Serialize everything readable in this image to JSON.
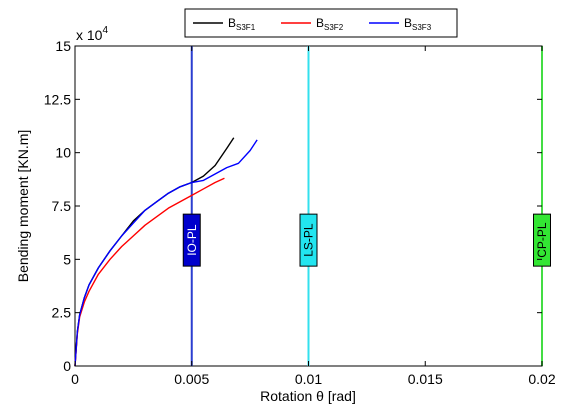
{
  "chart_data": {
    "type": "line",
    "xlabel": "Rotation  θ [rad]",
    "ylabel": "Bending moment  [KN.m]",
    "y_multiplier": "x 10",
    "y_multiplier_exp": "4",
    "xlim": [
      0,
      0.02
    ],
    "ylim": [
      0,
      15
    ],
    "x_ticks": [
      0,
      0.005,
      0.01,
      0.015,
      0.02
    ],
    "x_tick_labels": [
      "0",
      "0.005",
      "0.01",
      "0.015",
      "0.02"
    ],
    "y_ticks": [
      0,
      2.5,
      5,
      7.5,
      10,
      12.5,
      15
    ],
    "y_tick_labels": [
      "0",
      "2.5",
      "5",
      "7.5",
      "10",
      "12.5",
      "15"
    ],
    "grid": false,
    "legend_placement": "top",
    "series": [
      {
        "name": "B",
        "subscript": "S3F1",
        "color": "#000000",
        "points": [
          [
            0,
            0
          ],
          [
            0.0001,
            1.6
          ],
          [
            0.0002,
            2.4
          ],
          [
            0.0004,
            3.2
          ],
          [
            0.0006,
            3.8
          ],
          [
            0.001,
            4.6
          ],
          [
            0.0015,
            5.4
          ],
          [
            0.002,
            6.1
          ],
          [
            0.0025,
            6.8
          ],
          [
            0.003,
            7.3
          ],
          [
            0.0035,
            7.7
          ],
          [
            0.004,
            8.1
          ],
          [
            0.0045,
            8.4
          ],
          [
            0.005,
            8.6
          ],
          [
            0.0055,
            8.9
          ],
          [
            0.006,
            9.4
          ],
          [
            0.0065,
            10.2
          ],
          [
            0.0068,
            10.7
          ]
        ]
      },
      {
        "name": "B",
        "subscript": "S3F2",
        "color": "#ff0000",
        "points": [
          [
            0,
            0
          ],
          [
            0.0001,
            1.5
          ],
          [
            0.0002,
            2.3
          ],
          [
            0.0004,
            3.0
          ],
          [
            0.0006,
            3.5
          ],
          [
            0.001,
            4.3
          ],
          [
            0.0015,
            5.0
          ],
          [
            0.002,
            5.6
          ],
          [
            0.0025,
            6.1
          ],
          [
            0.003,
            6.6
          ],
          [
            0.0035,
            7.0
          ],
          [
            0.004,
            7.4
          ],
          [
            0.0045,
            7.7
          ],
          [
            0.005,
            8.0
          ],
          [
            0.0055,
            8.3
          ],
          [
            0.006,
            8.6
          ],
          [
            0.0064,
            8.8
          ]
        ]
      },
      {
        "name": "B",
        "subscript": "S3F3",
        "color": "#0000ff",
        "points": [
          [
            0,
            0
          ],
          [
            0.0001,
            1.6
          ],
          [
            0.0002,
            2.4
          ],
          [
            0.0004,
            3.2
          ],
          [
            0.0006,
            3.8
          ],
          [
            0.001,
            4.6
          ],
          [
            0.0015,
            5.4
          ],
          [
            0.002,
            6.1
          ],
          [
            0.0025,
            6.7
          ],
          [
            0.003,
            7.3
          ],
          [
            0.0035,
            7.7
          ],
          [
            0.004,
            8.1
          ],
          [
            0.0045,
            8.4
          ],
          [
            0.005,
            8.6
          ],
          [
            0.0055,
            8.7
          ],
          [
            0.006,
            9.0
          ],
          [
            0.0065,
            9.3
          ],
          [
            0.007,
            9.5
          ],
          [
            0.0075,
            10.1
          ],
          [
            0.0078,
            10.6
          ]
        ]
      }
    ],
    "performance_levels": [
      {
        "label": "IO-PL",
        "x": 0.005,
        "line_color": "#2b3fd0",
        "box_color": "#0000cc",
        "text_color": "#ffffff",
        "y": 5.9
      },
      {
        "label": "LS-PL",
        "x": 0.01,
        "line_color": "#33e0ee",
        "box_color": "#22e5f0",
        "text_color": "#000000",
        "y": 5.9
      },
      {
        "label": "CP-PL",
        "x": 0.02,
        "line_color": "#44dd44",
        "box_color": "#33e633",
        "text_color": "#000000",
        "y": 5.9
      }
    ]
  }
}
